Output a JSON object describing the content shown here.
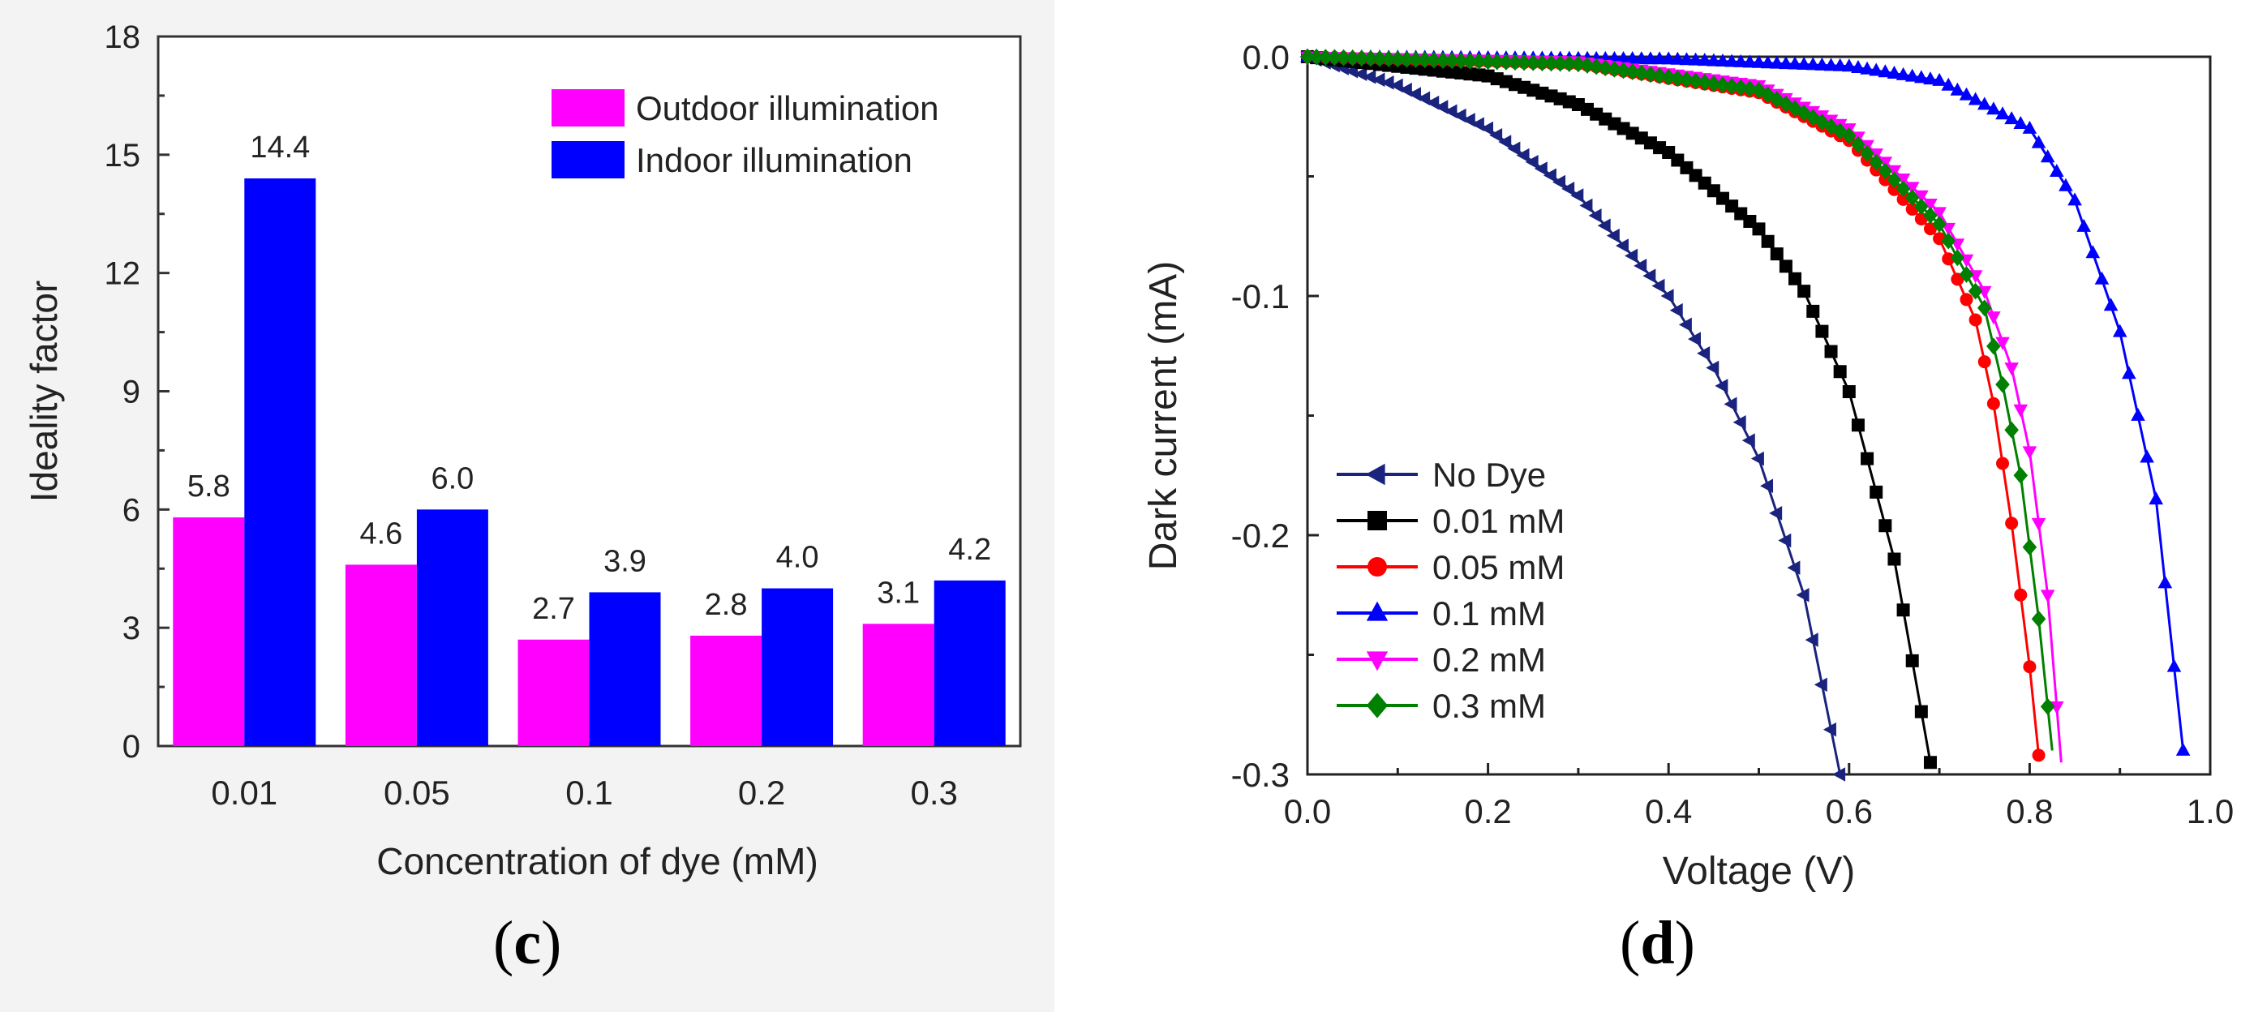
{
  "panels": [
    {
      "id": "c",
      "paren_open": "(",
      "letter": "c",
      "paren_close": ")"
    },
    {
      "id": "d",
      "paren_open": "(",
      "letter": "d",
      "paren_close": ")"
    }
  ],
  "chart_data": [
    {
      "type": "bar",
      "panel": "c",
      "title": "",
      "xlabel": "Concentration of dye (mM)",
      "ylabel": "Ideality factor",
      "ylim": [
        0,
        18
      ],
      "yticks": [
        0,
        3,
        6,
        9,
        12,
        15,
        18
      ],
      "categories": [
        "0.01",
        "0.05",
        "0.1",
        "0.2",
        "0.3"
      ],
      "series": [
        {
          "name": "Outdoor illumination",
          "color": "#ff00ff",
          "values": [
            5.8,
            4.6,
            2.7,
            2.8,
            3.1
          ],
          "labels": [
            "5.8",
            "4.6",
            "2.7",
            "2.8",
            "3.1"
          ]
        },
        {
          "name": "Indoor illumination",
          "color": "#0000ff",
          "values": [
            14.4,
            6.0,
            3.9,
            4.0,
            4.2
          ],
          "labels": [
            "14.4",
            "6.0",
            "3.9",
            "4.0",
            "4.2"
          ]
        }
      ],
      "legend": "top-right",
      "grid": false
    },
    {
      "type": "line",
      "panel": "d",
      "title": "",
      "xlabel": "Voltage (V)",
      "ylabel": "Dark current (mA)",
      "xlim": [
        0.0,
        1.0
      ],
      "ylim": [
        -0.3,
        0.0
      ],
      "xticks": [
        "0.0",
        "0.2",
        "0.4",
        "0.6",
        "0.8",
        "1.0"
      ],
      "yticks": [
        "0.0",
        "-0.1",
        "-0.2",
        "-0.3"
      ],
      "legend": "bottom-left",
      "grid": false,
      "series": [
        {
          "name": "No Dye",
          "color": "#1a237e",
          "marker": "triangle-left",
          "x": [
            0.0,
            0.1,
            0.2,
            0.3,
            0.4,
            0.45,
            0.5,
            0.55,
            0.59
          ],
          "y": [
            0.0,
            -0.012,
            -0.03,
            -0.058,
            -0.1,
            -0.13,
            -0.168,
            -0.225,
            -0.3
          ]
        },
        {
          "name": "0.01 mM",
          "color": "#000000",
          "marker": "square",
          "x": [
            0.0,
            0.2,
            0.3,
            0.4,
            0.5,
            0.55,
            0.6,
            0.65,
            0.69
          ],
          "y": [
            0.0,
            -0.008,
            -0.02,
            -0.04,
            -0.072,
            -0.098,
            -0.14,
            -0.21,
            -0.295
          ]
        },
        {
          "name": "0.05 mM",
          "color": "#ff0000",
          "marker": "circle",
          "x": [
            0.0,
            0.3,
            0.5,
            0.6,
            0.7,
            0.74,
            0.76,
            0.78,
            0.8,
            0.81
          ],
          "y": [
            0.0,
            -0.003,
            -0.015,
            -0.035,
            -0.076,
            -0.11,
            -0.145,
            -0.195,
            -0.255,
            -0.292
          ]
        },
        {
          "name": "0.1 mM",
          "color": "#0000ff",
          "marker": "triangle-up",
          "x": [
            0.0,
            0.4,
            0.6,
            0.7,
            0.8,
            0.85,
            0.9,
            0.94,
            0.97
          ],
          "y": [
            0.0,
            -0.001,
            -0.004,
            -0.01,
            -0.03,
            -0.06,
            -0.115,
            -0.185,
            -0.29
          ]
        },
        {
          "name": "0.2 mM",
          "color": "#ff00ff",
          "marker": "triangle-down",
          "x": [
            0.0,
            0.3,
            0.5,
            0.6,
            0.7,
            0.75,
            0.78,
            0.8,
            0.82,
            0.835
          ],
          "y": [
            0.0,
            -0.002,
            -0.012,
            -0.03,
            -0.065,
            -0.098,
            -0.13,
            -0.165,
            -0.225,
            -0.295
          ]
        },
        {
          "name": "0.3 mM",
          "color": "#008000",
          "marker": "diamond",
          "x": [
            0.0,
            0.3,
            0.5,
            0.6,
            0.7,
            0.75,
            0.77,
            0.79,
            0.81,
            0.825
          ],
          "y": [
            0.0,
            -0.003,
            -0.014,
            -0.033,
            -0.07,
            -0.105,
            -0.137,
            -0.175,
            -0.235,
            -0.29
          ]
        }
      ]
    }
  ]
}
